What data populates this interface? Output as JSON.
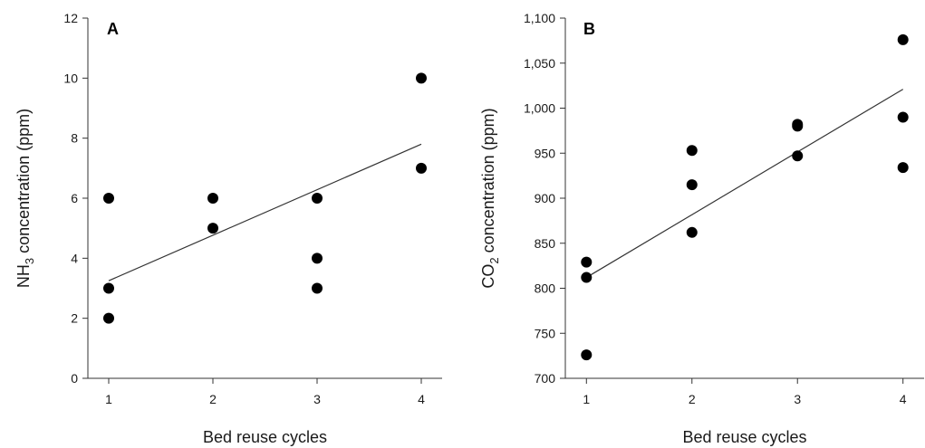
{
  "chart_data": [
    {
      "type": "scatter",
      "panel_label": "A",
      "xlabel": "Bed reuse cycles",
      "ylabel": {
        "prefix": "NH",
        "sub": "3",
        "suffix": " concentration (ppm)"
      },
      "xlim": [
        0.8,
        4.2
      ],
      "ylim": [
        0,
        12
      ],
      "x_ticks": [
        1,
        2,
        3,
        4
      ],
      "y_ticks": [
        0,
        2,
        4,
        6,
        8,
        10,
        12
      ],
      "y_tick_labels": [
        "0",
        "2",
        "4",
        "6",
        "8",
        "10",
        "12"
      ],
      "x_tick_labels": [
        "1",
        "2",
        "3",
        "4"
      ],
      "series": [
        {
          "points": [
            {
              "x": 1,
              "y": 6
            },
            {
              "x": 1,
              "y": 3
            },
            {
              "x": 1,
              "y": 2
            },
            {
              "x": 2,
              "y": 6
            },
            {
              "x": 2,
              "y": 5
            },
            {
              "x": 3,
              "y": 6
            },
            {
              "x": 3,
              "y": 4
            },
            {
              "x": 3,
              "y": 3
            },
            {
              "x": 4,
              "y": 10
            },
            {
              "x": 4,
              "y": 7
            }
          ]
        }
      ],
      "trendline": {
        "x": [
          1,
          4
        ],
        "y": [
          3.25,
          7.8
        ]
      },
      "grid": false,
      "legend": "none"
    },
    {
      "type": "scatter",
      "panel_label": "B",
      "xlabel": "Bed reuse cycles",
      "ylabel": {
        "prefix": "CO",
        "sub": "2",
        "suffix": " concentration (ppm)"
      },
      "xlim": [
        0.8,
        4.2
      ],
      "ylim": [
        700,
        1100
      ],
      "x_ticks": [
        1,
        2,
        3,
        4
      ],
      "y_ticks": [
        700,
        750,
        800,
        850,
        900,
        950,
        1000,
        1050,
        1100
      ],
      "y_tick_labels": [
        "700",
        "750",
        "800",
        "850",
        "900",
        "950",
        "1,000",
        "1,050",
        "1,100"
      ],
      "x_tick_labels": [
        "1",
        "2",
        "3",
        "4"
      ],
      "series": [
        {
          "points": [
            {
              "x": 1,
              "y": 829
            },
            {
              "x": 1,
              "y": 812
            },
            {
              "x": 1,
              "y": 726
            },
            {
              "x": 2,
              "y": 953
            },
            {
              "x": 2,
              "y": 915
            },
            {
              "x": 2,
              "y": 862
            },
            {
              "x": 3,
              "y": 982
            },
            {
              "x": 3,
              "y": 980
            },
            {
              "x": 3,
              "y": 947
            },
            {
              "x": 4,
              "y": 1076
            },
            {
              "x": 4,
              "y": 990
            },
            {
              "x": 4,
              "y": 934
            }
          ]
        }
      ],
      "trendline": {
        "x": [
          1,
          4
        ],
        "y": [
          812,
          1021
        ]
      },
      "grid": false,
      "legend": "none"
    }
  ]
}
